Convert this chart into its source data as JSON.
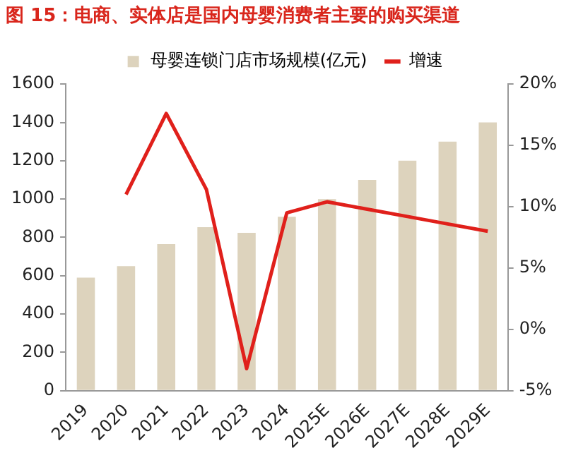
{
  "chart_data": {
    "type": "bar",
    "title": "图 15：电商、实体店是国内母婴消费者主要的购买渠道",
    "categories": [
      "2019",
      "2020",
      "2021",
      "2022",
      "2023",
      "2024",
      "2025E",
      "2026E",
      "2027E",
      "2028E",
      "2029E"
    ],
    "series": [
      {
        "name": "母婴连锁门店市场规模(亿元)",
        "color": "#ddd3bd",
        "values": [
          590,
          650,
          765,
          853,
          824,
          908,
          1000,
          1100,
          1200,
          1300,
          1400
        ]
      },
      {
        "name": "增速",
        "type": "line",
        "axis": "y2",
        "color": "#e0201b",
        "values": [
          null,
          11.0,
          17.6,
          11.4,
          -3.2,
          9.5,
          10.4,
          9.8,
          9.2,
          8.6,
          8.0
        ]
      }
    ],
    "ylim": [
      0,
      1600
    ],
    "yticks": [
      0,
      200,
      400,
      600,
      800,
      1000,
      1200,
      1400,
      1600
    ],
    "y2lim": [
      -5,
      20
    ],
    "y2ticks": [
      {
        "value": -5,
        "label": "-5%"
      },
      {
        "value": 0,
        "label": "0%"
      },
      {
        "value": 5,
        "label": "5%"
      },
      {
        "value": 10,
        "label": "10%"
      },
      {
        "value": 15,
        "label": "15%"
      },
      {
        "value": 20,
        "label": "20%"
      }
    ],
    "grid": false,
    "legend": "top",
    "marker": "none",
    "line_style": "solid"
  }
}
